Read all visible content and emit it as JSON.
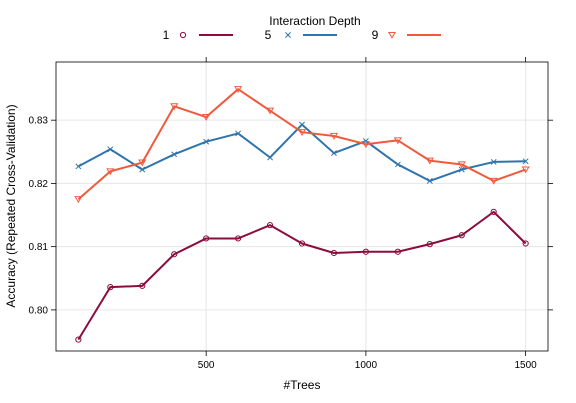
{
  "chart_data": {
    "type": "line",
    "xlabel": "#Trees",
    "ylabel": "Accuracy (Repeated Cross-Validation)",
    "legend_title": "Interaction Depth",
    "legend_position": "top",
    "grid": true,
    "xlim": [
      30,
      1570
    ],
    "ylim": [
      0.7935,
      0.8392
    ],
    "xticks": [
      500,
      1000,
      1500
    ],
    "yticks": [
      0.8,
      0.81,
      0.82,
      0.83
    ],
    "x": [
      100,
      200,
      300,
      400,
      500,
      600,
      700,
      800,
      900,
      1000,
      1100,
      1200,
      1300,
      1400,
      1500
    ],
    "series": [
      {
        "name": "1",
        "color": "#8b0d3f",
        "marker": "circle",
        "values": [
          0.7953,
          0.8036,
          0.8038,
          0.8088,
          0.8113,
          0.8113,
          0.8134,
          0.8105,
          0.809,
          0.8092,
          0.8092,
          0.8104,
          0.8118,
          0.8155,
          0.8105
        ]
      },
      {
        "name": "5",
        "color": "#2f74ad",
        "marker": "cross",
        "values": [
          0.8227,
          0.8254,
          0.8222,
          0.8246,
          0.8266,
          0.8279,
          0.8241,
          0.8293,
          0.8248,
          0.8267,
          0.823,
          0.8204,
          0.8222,
          0.8234,
          0.8235
        ]
      },
      {
        "name": "9",
        "color": "#ef5a3d",
        "marker": "triangle-down",
        "values": [
          0.8175,
          0.8219,
          0.8233,
          0.8322,
          0.8305,
          0.8349,
          0.8315,
          0.8281,
          0.8275,
          0.8262,
          0.8268,
          0.8236,
          0.823,
          0.8204,
          0.8222
        ]
      }
    ]
  }
}
